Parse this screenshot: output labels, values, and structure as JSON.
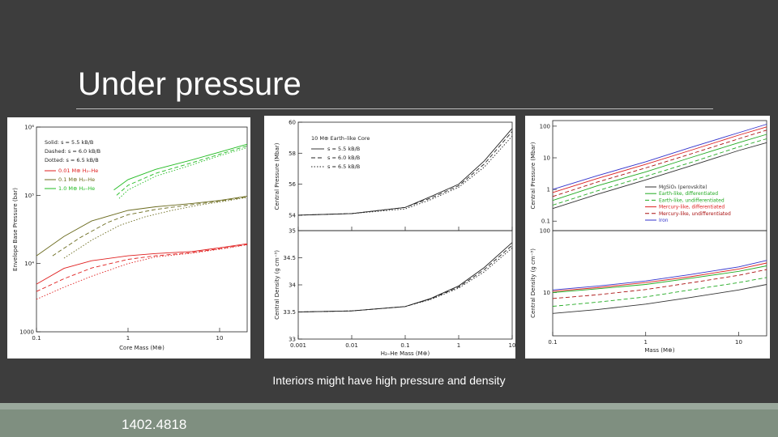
{
  "slide": {
    "title": "Under pressure",
    "caption": "Interiors might have high pressure and density",
    "footer": "1402.4818"
  },
  "chart_data": [
    {
      "type": "line",
      "xlabel": "Core Mass (M⊕)",
      "ylabel": "Envelope Base Pressure (bar)",
      "xscale": "log",
      "yscale": "log",
      "xlim": [
        0.1,
        20
      ],
      "ylim": [
        1000,
        1000000
      ],
      "xticks": [
        "0.1",
        "1",
        "10"
      ],
      "yticks": [
        "1000",
        "10⁴",
        "10⁵",
        "10⁶"
      ],
      "legend": {
        "entropy": [
          "Solid: s = 5.5 kB/B",
          "Dashed: s = 6.0 kB/B",
          "Dotted: s = 6.5 kB/B"
        ],
        "envelopes": [
          "0.01 M⊕ H₂–He",
          "0.1 M⊕ H₂–He",
          "1.0 M⊕ H₂–He"
        ]
      },
      "series": [
        {
          "name": "0.01 M⊕ H₂–He",
          "color": "#e02020",
          "style": "solid",
          "x": [
            0.1,
            0.2,
            0.4,
            1,
            2,
            5,
            10,
            20
          ],
          "values": [
            5000,
            8500,
            11000,
            13000,
            14000,
            15000,
            17000,
            19500
          ]
        },
        {
          "name": "0.01 M⊕ H₂–He",
          "color": "#e02020",
          "style": "dashed",
          "x": [
            0.1,
            0.2,
            0.4,
            1,
            2,
            5,
            10,
            20
          ],
          "values": [
            3900,
            6000,
            8600,
            11500,
            13000,
            14500,
            16500,
            19000
          ]
        },
        {
          "name": "0.01 M⊕ H₂–He",
          "color": "#e02020",
          "style": "dotted",
          "x": [
            0.1,
            0.2,
            0.4,
            1,
            2,
            5,
            10,
            20
          ],
          "values": [
            3000,
            4500,
            6500,
            10000,
            12500,
            14200,
            16200,
            18800
          ]
        },
        {
          "name": "0.1 M⊕ H₂–He",
          "color": "#6b6b1f",
          "style": "solid",
          "x": [
            0.1,
            0.2,
            0.4,
            1,
            2,
            5,
            10,
            20
          ],
          "values": [
            13000,
            25000,
            42000,
            60000,
            68000,
            76000,
            84000,
            97000
          ]
        },
        {
          "name": "0.1 M⊕ H₂–He",
          "color": "#6b6b1f",
          "style": "dashed",
          "x": [
            0.15,
            0.3,
            0.6,
            1,
            2,
            5,
            10,
            20
          ],
          "values": [
            13000,
            24000,
            40000,
            52000,
            62000,
            73000,
            82000,
            95000
          ]
        },
        {
          "name": "0.1 M⊕ H₂–He",
          "color": "#6b6b1f",
          "style": "dotted",
          "x": [
            0.2,
            0.4,
            0.8,
            1.5,
            3,
            6,
            12,
            20
          ],
          "values": [
            12000,
            22000,
            36000,
            48000,
            60000,
            72000,
            83000,
            93000
          ]
        },
        {
          "name": "1.0 M⊕ H₂–He",
          "color": "#22bb22",
          "style": "solid",
          "x": [
            0.7,
            1,
            2,
            5,
            10,
            20
          ],
          "values": [
            120000,
            170000,
            240000,
            330000,
            430000,
            560000
          ]
        },
        {
          "name": "1.0 M⊕ H₂–He",
          "color": "#22bb22",
          "style": "dashed",
          "x": [
            0.75,
            1,
            2,
            5,
            10,
            20
          ],
          "values": [
            100000,
            140000,
            210000,
            300000,
            400000,
            530000
          ]
        },
        {
          "name": "1.0 M⊕ H₂–He",
          "color": "#22bb22",
          "style": "dotted",
          "x": [
            0.8,
            1,
            2,
            5,
            10,
            20
          ],
          "values": [
            90000,
            120000,
            190000,
            280000,
            380000,
            500000
          ]
        }
      ]
    },
    {
      "type": "line",
      "xlabel": "H₂–He Mass (M⊕)",
      "xscale": "log",
      "xlim": [
        0.001,
        10
      ],
      "xticks": [
        "0.001",
        "0.01",
        "0.1",
        "1",
        "10"
      ],
      "panels": [
        {
          "ylabel": "Central Pressure (Mbar)",
          "ylim": [
            53,
            60
          ],
          "yticks": [
            "54",
            "56",
            "58",
            "60"
          ],
          "legend": {
            "core": "10 M⊕ Earth–like Core",
            "lines": [
              "s = 5.5 kB/B",
              "s = 6.0 kB/B",
              "s = 6.5 kB/B"
            ]
          },
          "series": [
            {
              "name": "s = 5.5 kB/B",
              "style": "solid",
              "x": [
                0.001,
                0.01,
                0.1,
                0.3,
                1,
                3,
                10
              ],
              "values": [
                54.0,
                54.1,
                54.5,
                55.2,
                56.0,
                57.5,
                59.6
              ]
            },
            {
              "name": "s = 6.0 kB/B",
              "style": "dashed",
              "x": [
                0.001,
                0.01,
                0.1,
                0.3,
                1,
                3,
                10
              ],
              "values": [
                54.0,
                54.1,
                54.5,
                55.1,
                55.9,
                57.3,
                59.4
              ]
            },
            {
              "name": "s = 6.5 kB/B",
              "style": "dotted",
              "x": [
                0.001,
                0.01,
                0.1,
                0.3,
                1,
                3,
                10
              ],
              "values": [
                54.0,
                54.1,
                54.4,
                55.0,
                55.8,
                57.1,
                59.1
              ]
            }
          ]
        },
        {
          "ylabel": "Central Density (g cm⁻³)",
          "ylim": [
            33,
            35
          ],
          "yticks": [
            "33",
            "33.5",
            "34",
            "34.5",
            "35"
          ],
          "series": [
            {
              "name": "s = 5.5 kB/B",
              "style": "solid",
              "x": [
                0.001,
                0.01,
                0.1,
                0.3,
                1,
                3,
                10
              ],
              "values": [
                33.5,
                33.52,
                33.6,
                33.75,
                33.98,
                34.32,
                34.78
              ]
            },
            {
              "name": "s = 6.0 kB/B",
              "style": "dashed",
              "x": [
                0.001,
                0.01,
                0.1,
                0.3,
                1,
                3,
                10
              ],
              "values": [
                33.5,
                33.52,
                33.6,
                33.74,
                33.96,
                34.28,
                34.73
              ]
            },
            {
              "name": "s = 6.5 kB/B",
              "style": "dotted",
              "x": [
                0.001,
                0.01,
                0.1,
                0.3,
                1,
                3,
                10
              ],
              "values": [
                33.5,
                33.52,
                33.6,
                33.73,
                33.94,
                34.24,
                34.68
              ]
            }
          ]
        }
      ]
    },
    {
      "type": "line",
      "xlabel": "Mass (M⊕)",
      "xscale": "log",
      "xlim": [
        0.1,
        20
      ],
      "xticks": [
        "0.1",
        "1",
        "10"
      ],
      "legend": [
        "MgSiO₃ (perovskite)",
        "Earth-like, differentiated",
        "Earth-like, undifferentiated",
        "Mercury-like, differentiated",
        "Mercury-like, undifferentiated",
        "Iron"
      ],
      "panels": [
        {
          "ylabel": "Central Pressure (Mbar)",
          "yscale": "log",
          "ylim": [
            0.05,
            150
          ],
          "yticks": [
            "0.1",
            "1",
            "10",
            "100"
          ],
          "series": [
            {
              "name": "MgSiO₃ (perovskite)",
              "color": "#333333",
              "style": "solid",
              "x": [
                0.1,
                0.3,
                1,
                3,
                10,
                20
              ],
              "values": [
                0.25,
                0.7,
                2.0,
                5.5,
                17,
                30
              ]
            },
            {
              "name": "Earth-like, differentiated",
              "color": "#22aa22",
              "style": "solid",
              "x": [
                0.1,
                0.3,
                1,
                3,
                10,
                20
              ],
              "values": [
                0.45,
                1.3,
                3.6,
                10,
                30,
                55
              ]
            },
            {
              "name": "Earth-like, undifferentiated",
              "color": "#22aa22",
              "style": "dashed",
              "x": [
                0.1,
                0.3,
                1,
                3,
                10,
                20
              ],
              "values": [
                0.32,
                0.9,
                2.6,
                7,
                22,
                40
              ]
            },
            {
              "name": "Mercury-like, differentiated",
              "color": "#dd2222",
              "style": "solid",
              "x": [
                0.1,
                0.3,
                1,
                3,
                10,
                20
              ],
              "values": [
                0.8,
                2.2,
                6.2,
                17,
                52,
                95
              ]
            },
            {
              "name": "Mercury-like, undifferentiated",
              "color": "#aa1111",
              "style": "dashed",
              "x": [
                0.1,
                0.3,
                1,
                3,
                10,
                20
              ],
              "values": [
                0.6,
                1.7,
                4.8,
                13,
                40,
                75
              ]
            },
            {
              "name": "Iron",
              "color": "#3333cc",
              "style": "solid",
              "x": [
                0.1,
                0.3,
                1,
                3,
                10,
                20
              ],
              "values": [
                1.0,
                2.7,
                7.5,
                21,
                62,
                115
              ]
            }
          ]
        },
        {
          "ylabel": "Central Density (g cm⁻³)",
          "yscale": "log",
          "ylim": [
            2,
            100
          ],
          "yticks": [
            "10",
            "100"
          ],
          "series": [
            {
              "name": "MgSiO₃ (perovskite)",
              "color": "#333333",
              "style": "solid",
              "x": [
                0.1,
                0.3,
                1,
                3,
                10,
                20
              ],
              "values": [
                4.6,
                5.3,
                6.5,
                8.3,
                11,
                13.5
              ]
            },
            {
              "name": "Earth-like, differentiated",
              "color": "#22aa22",
              "style": "solid",
              "x": [
                0.1,
                0.3,
                1,
                3,
                10,
                20
              ],
              "values": [
                10,
                11.5,
                13.5,
                17,
                22,
                27
              ]
            },
            {
              "name": "Earth-like, undifferentiated",
              "color": "#22aa22",
              "style": "dashed",
              "x": [
                0.1,
                0.3,
                1,
                3,
                10,
                20
              ],
              "values": [
                6,
                7,
                8.5,
                11,
                14.5,
                17.5
              ]
            },
            {
              "name": "Mercury-like, differentiated",
              "color": "#dd2222",
              "style": "solid",
              "x": [
                0.1,
                0.3,
                1,
                3,
                10,
                20
              ],
              "values": [
                10.5,
                12,
                14.5,
                18,
                24,
                30
              ]
            },
            {
              "name": "Mercury-like, undifferentiated",
              "color": "#aa1111",
              "style": "dashed",
              "x": [
                0.1,
                0.3,
                1,
                3,
                10,
                20
              ],
              "values": [
                8,
                9.2,
                11.2,
                14.3,
                19,
                23.5
              ]
            },
            {
              "name": "Iron",
              "color": "#3333cc",
              "style": "solid",
              "x": [
                0.1,
                0.3,
                1,
                3,
                10,
                20
              ],
              "values": [
                11,
                12.7,
                15.4,
                19.5,
                26,
                33
              ]
            }
          ]
        }
      ]
    }
  ]
}
